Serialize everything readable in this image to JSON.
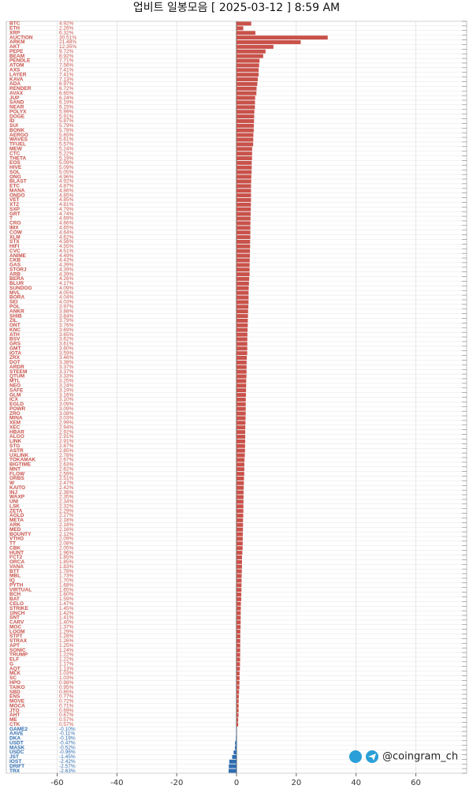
{
  "chart_data": {
    "type": "hbar",
    "title": "업비트 일봉모음 [ 2025-03-12 ]  8:59 AM",
    "watermark": "@coingram_ch",
    "categories": [
      "BTC",
      "ETH",
      "XRP",
      "AUCTION",
      "ARKM",
      "AKT",
      "PEPE",
      "BEAM",
      "PENDLE",
      "ATOM",
      "AXS",
      "LAYER",
      "KAVA",
      "ADA",
      "RENDER",
      "AVAX",
      "JUP",
      "SAND",
      "NEAR",
      "POLYX",
      "DOGE",
      "ID",
      "SUI",
      "BONK",
      "AERGO",
      "WAVES",
      "TFUEL",
      "MEW",
      "CTC",
      "THETA",
      "EOS",
      "HIVE",
      "SOL",
      "ONG",
      "BLAST",
      "ETC",
      "MANA",
      "ONDO",
      "VET",
      "XTZ",
      "SXP",
      "GRT",
      "T",
      "CRO",
      "IMX",
      "COW",
      "XLM",
      "STX",
      "HIFI",
      "CVC",
      "ANIME",
      "CKB",
      "GAS",
      "STORJ",
      "ARB",
      "BERA",
      "BLUR",
      "SUNDOG",
      "MVL",
      "BORA",
      "SEI",
      "POL",
      "ANKR",
      "SHIB",
      "ZIL",
      "ONT",
      "KNC",
      "ATH",
      "BSV",
      "GRS",
      "GMT",
      "IOTA",
      "ZRX",
      "DOT",
      "ARDR",
      "STEEM",
      "QTUM",
      "MTL",
      "NEO",
      "SAFE",
      "GLM",
      "ICX",
      "EGLD",
      "POWR",
      "ZRO",
      "MINA",
      "XEM",
      "XEC",
      "HBAR",
      "ALGO",
      "LINK",
      "STG",
      "ASTR",
      "UXLINK",
      "TOKAMAK",
      "BIGTIME",
      "MNT",
      "FLOW",
      "ORBS",
      "W",
      "KAITO",
      "INJ",
      "WAXP",
      "UNI",
      "LSK",
      "ZETA",
      "AGLD",
      "META",
      "ARK",
      "MED",
      "BOUNTY",
      "VTHO",
      "TT",
      "CBK",
      "HUNT",
      "FCT2",
      "ORCA",
      "VANA",
      "BTT",
      "MBL",
      "IQ",
      "PYTH",
      "VIRTUAL",
      "BCH",
      "BAT",
      "CELO",
      "STRIKE",
      "1INCH",
      "SNT",
      "CARV",
      "MOC",
      "LOOM",
      "STPT",
      "STRAX",
      "APT",
      "SONIC",
      "TRUMP",
      "ELF",
      "G",
      "AQT",
      "MLK",
      "SC",
      "HPO",
      "TAIKO",
      "SBD",
      "ENS",
      "MOVE",
      "MOCA",
      "JTO",
      "AHT",
      "ME",
      "CTK",
      "GAME2",
      "AAVE",
      "DKA",
      "USDT",
      "MASK",
      "USDC",
      "JST",
      "IOST",
      "DRIFT",
      "TRX"
    ],
    "values": [
      4.92,
      2.26,
      6.32,
      30.51,
      21.48,
      12.35,
      9.72,
      8.92,
      7.71,
      7.56,
      7.41,
      7.41,
      7.13,
      6.97,
      6.72,
      6.65,
      6.24,
      6.19,
      6.15,
      5.99,
      5.91,
      5.87,
      5.79,
      5.78,
      5.65,
      5.61,
      5.57,
      5.24,
      5.22,
      5.19,
      5.09,
      5.09,
      5.05,
      4.96,
      4.92,
      4.87,
      4.86,
      4.85,
      4.85,
      4.81,
      4.79,
      4.74,
      4.69,
      4.66,
      4.65,
      4.64,
      4.62,
      4.56,
      4.55,
      4.51,
      4.49,
      4.43,
      4.39,
      4.39,
      4.39,
      4.26,
      4.17,
      4.09,
      4.05,
      4.04,
      4.03,
      3.97,
      3.88,
      3.84,
      3.79,
      3.76,
      3.69,
      3.65,
      3.62,
      3.61,
      3.6,
      3.59,
      3.46,
      3.38,
      3.37,
      3.37,
      3.33,
      3.25,
      3.24,
      3.19,
      3.16,
      3.1,
      3.09,
      3.09,
      3.08,
      3.03,
      2.99,
      2.94,
      2.92,
      2.91,
      2.91,
      2.87,
      2.85,
      2.78,
      2.67,
      2.63,
      2.62,
      2.59,
      2.51,
      2.47,
      2.42,
      2.36,
      2.35,
      2.34,
      2.32,
      2.29,
      2.27,
      2.18,
      2.18,
      2.16,
      2.12,
      2.09,
      2.08,
      2.05,
      1.96,
      1.85,
      1.85,
      1.83,
      1.78,
      1.73,
      1.7,
      1.68,
      1.65,
      1.6,
      1.59,
      1.47,
      1.45,
      1.42,
      1.41,
      1.4,
      1.37,
      1.29,
      1.28,
      1.26,
      1.25,
      1.24,
      1.22,
      1.22,
      1.17,
      1.13,
      1.03,
      1.03,
      0.98,
      0.95,
      0.85,
      0.77,
      0.72,
      0.71,
      0.69,
      0.67,
      0.57,
      0.57,
      -0.1,
      -0.11,
      -0.19,
      -0.47,
      -0.52,
      -0.96,
      -1.45,
      -2.42,
      -2.57,
      -2.63
    ],
    "value_labels": [
      "4.92%",
      "2.26%",
      "6.32%",
      "30.51%",
      "21.48%",
      "12.35%",
      "9.72%",
      "8.92%",
      "7.71%",
      "7.56%",
      "7.41%",
      "7.41%",
      "7.13%",
      "6.97%",
      "6.72%",
      "6.65%",
      "6.24%",
      "6.19%",
      "6.15%",
      "5.99%",
      "5.91%",
      "5.87%",
      "5.79%",
      "5.78%",
      "5.65%",
      "5.61%",
      "5.57%",
      "5.24%",
      "5.22%",
      "5.19%",
      "5.09%",
      "5.09%",
      "5.05%",
      "4.96%",
      "4.92%",
      "4.87%",
      "4.86%",
      "4.85%",
      "4.85%",
      "4.81%",
      "4.79%",
      "4.74%",
      "4.69%",
      "4.66%",
      "4.65%",
      "4.64%",
      "4.62%",
      "4.56%",
      "4.55%",
      "4.51%",
      "4.49%",
      "4.43%",
      "4.39%",
      "4.39%",
      "4.39%",
      "4.26%",
      "4.17%",
      "4.09%",
      "4.05%",
      "4.04%",
      "4.03%",
      "3.97%",
      "3.88%",
      "3.84%",
      "3.79%",
      "3.76%",
      "3.69%",
      "3.65%",
      "3.62%",
      "3.61%",
      "3.60%",
      "3.59%",
      "3.46%",
      "3.38%",
      "3.37%",
      "3.37%",
      "3.33%",
      "3.25%",
      "3.24%",
      "3.19%",
      "3.16%",
      "3.10%",
      "3.09%",
      "3.09%",
      "3.08%",
      "3.03%",
      "2.99%",
      "2.94%",
      "2.92%",
      "2.91%",
      "2.91%",
      "2.87%",
      "2.85%",
      "2.78%",
      "2.67%",
      "2.63%",
      "2.62%",
      "2.59%",
      "2.51%",
      "2.47%",
      "2.42%",
      "2.36%",
      "2.35%",
      "2.34%",
      "2.32%",
      "2.29%",
      "2.27%",
      "2.18%",
      "2.18%",
      "2.16%",
      "2.12%",
      "2.09%",
      "2.08%",
      "2.05%",
      "1.96%",
      "1.85%",
      "1.85%",
      "1.83%",
      "1.78%",
      "1.73%",
      "1.70%",
      "1.68%",
      "1.65%",
      "1.60%",
      "1.59%",
      "1.47%",
      "1.45%",
      "1.42%",
      "1.41%",
      "1.40%",
      "1.37%",
      "1.29%",
      "1.28%",
      "1.26%",
      "1.25%",
      "1.24%",
      "1.22%",
      "1.22%",
      "1.17%",
      "1.13%",
      "1.03%",
      "1.03%",
      "0.98%",
      "0.95%",
      "0.85%",
      "0.77%",
      "0.72%",
      "0.71%",
      "0.69%",
      "0.67%",
      "0.57%",
      "0.57%",
      "-0.10%",
      "-0.11%",
      "-0.19%",
      "-0.47%",
      "-0.52%",
      "-0.96%",
      "-1.45%",
      "-2.42%",
      "-2.57%",
      "-2.63%"
    ],
    "positive_color": "#c9524a",
    "negative_color": "#2f6db0",
    "xlim": [
      -77,
      77
    ],
    "xticks": [
      -60,
      -40,
      -20,
      0,
      20,
      40,
      60
    ],
    "grid": true
  }
}
